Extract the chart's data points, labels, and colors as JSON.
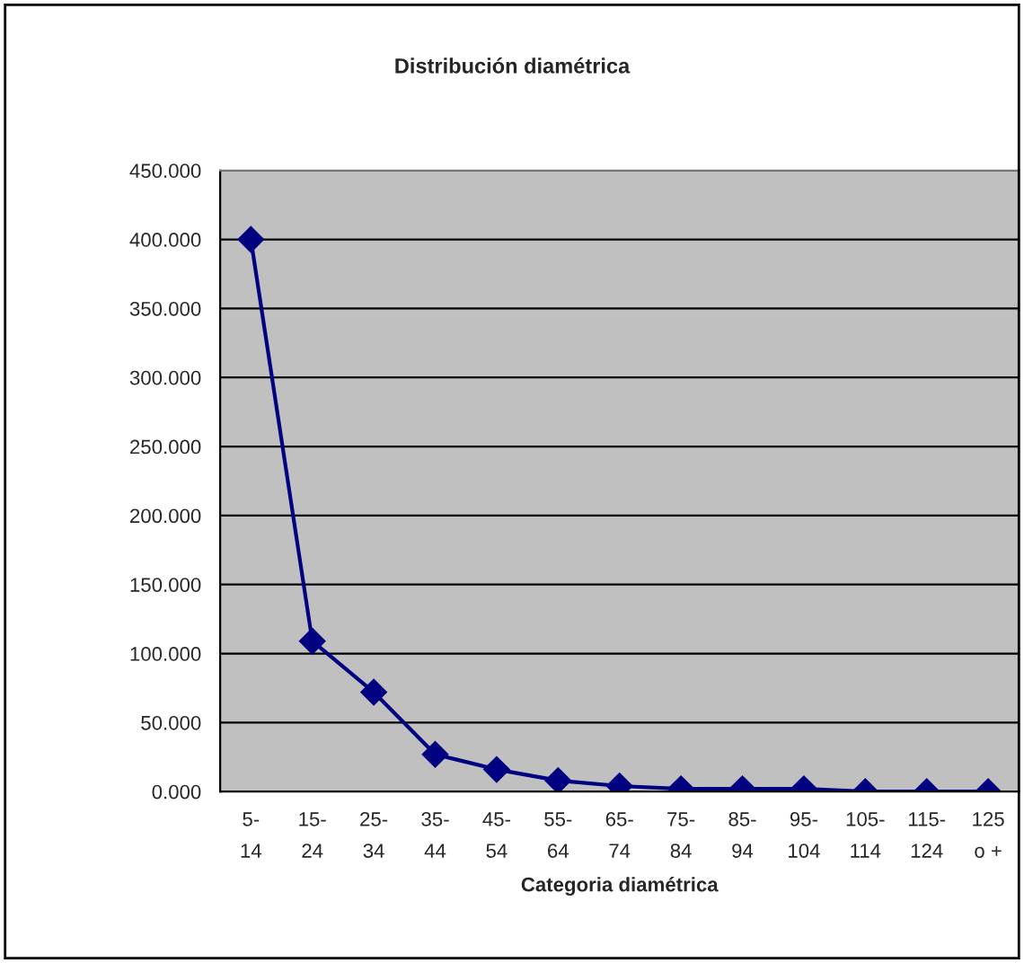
{
  "chart_data": {
    "type": "line",
    "title": "Distribución diamétrica",
    "xlabel": "Categoria diamétrica",
    "categories": [
      "5-\n14",
      "15-\n24",
      "25-\n34",
      "35-\n44",
      "45-\n54",
      "55-\n64",
      "65-\n74",
      "75-\n84",
      "85-\n94",
      "95-\n104",
      "105-\n114",
      "115-\n124",
      "125\no +"
    ],
    "series": [
      {
        "color": "#000080",
        "values": [
          400,
          109,
          72,
          27,
          16,
          8,
          4,
          2,
          2,
          2,
          0,
          0,
          0
        ]
      }
    ],
    "ylim": [
      0,
      450
    ],
    "yticks": [
      {
        "value": 0,
        "label": "0.000"
      },
      {
        "value": 50,
        "label": "50.000"
      },
      {
        "value": 100,
        "label": "100.000"
      },
      {
        "value": 150,
        "label": "150.000"
      },
      {
        "value": 200,
        "label": "200.000"
      },
      {
        "value": 250,
        "label": "250.000"
      },
      {
        "value": 300,
        "label": "300.000"
      },
      {
        "value": 350,
        "label": "350.000"
      },
      {
        "value": 400,
        "label": "400.000"
      },
      {
        "value": 450,
        "label": "450.000"
      }
    ],
    "grid": "y",
    "marker": "diamond",
    "line_style": "solid",
    "legend": false
  }
}
